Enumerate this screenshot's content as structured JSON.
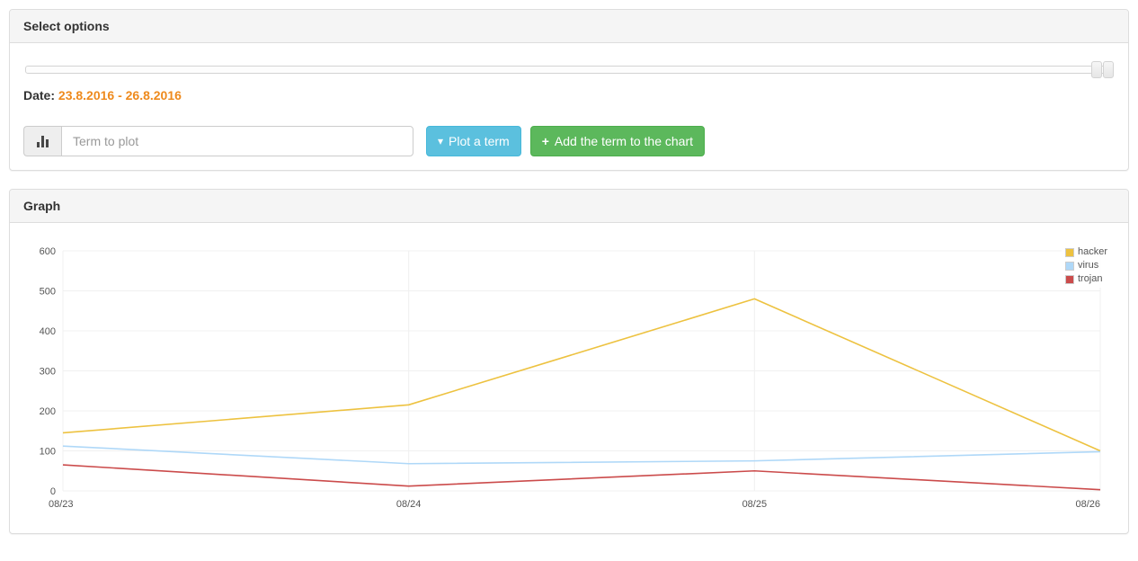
{
  "select_options_panel": {
    "title": "Select options",
    "date_label": "Date:",
    "date_range": "23.8.2016 - 26.8.2016",
    "term_input": {
      "placeholder": "Term to plot",
      "value": ""
    },
    "plot_button_label": "Plot a term",
    "add_button_label": "Add the term to the chart"
  },
  "graph_panel": {
    "title": "Graph"
  },
  "icons": {
    "caret_down": "▾",
    "plus": "+",
    "bar_chart": "bar-chart-glyph"
  },
  "colors": {
    "date_text": "#ee8a1d",
    "plot_button": "#5bc0de",
    "add_button": "#5cb85c",
    "panel_heading_bg": "#f5f5f5",
    "grid_line": "#f0f0f0",
    "tick_text": "#545454"
  },
  "chart_data": {
    "type": "line",
    "title": "",
    "xlabel": "",
    "ylabel": "",
    "x": [
      "08/23",
      "08/24",
      "08/25",
      "08/26"
    ],
    "series": [
      {
        "name": "hacker",
        "color": "#edc240",
        "values": [
          145,
          215,
          480,
          100
        ]
      },
      {
        "name": "virus",
        "color": "#afd8f8",
        "values": [
          112,
          68,
          75,
          98
        ]
      },
      {
        "name": "trojan",
        "color": "#cb4b4b",
        "values": [
          65,
          12,
          50,
          3
        ]
      }
    ],
    "ylim": [
      0,
      600
    ],
    "yticks": [
      0,
      100,
      200,
      300,
      400,
      500,
      600
    ],
    "grid": true,
    "legend_position": "top-right"
  }
}
